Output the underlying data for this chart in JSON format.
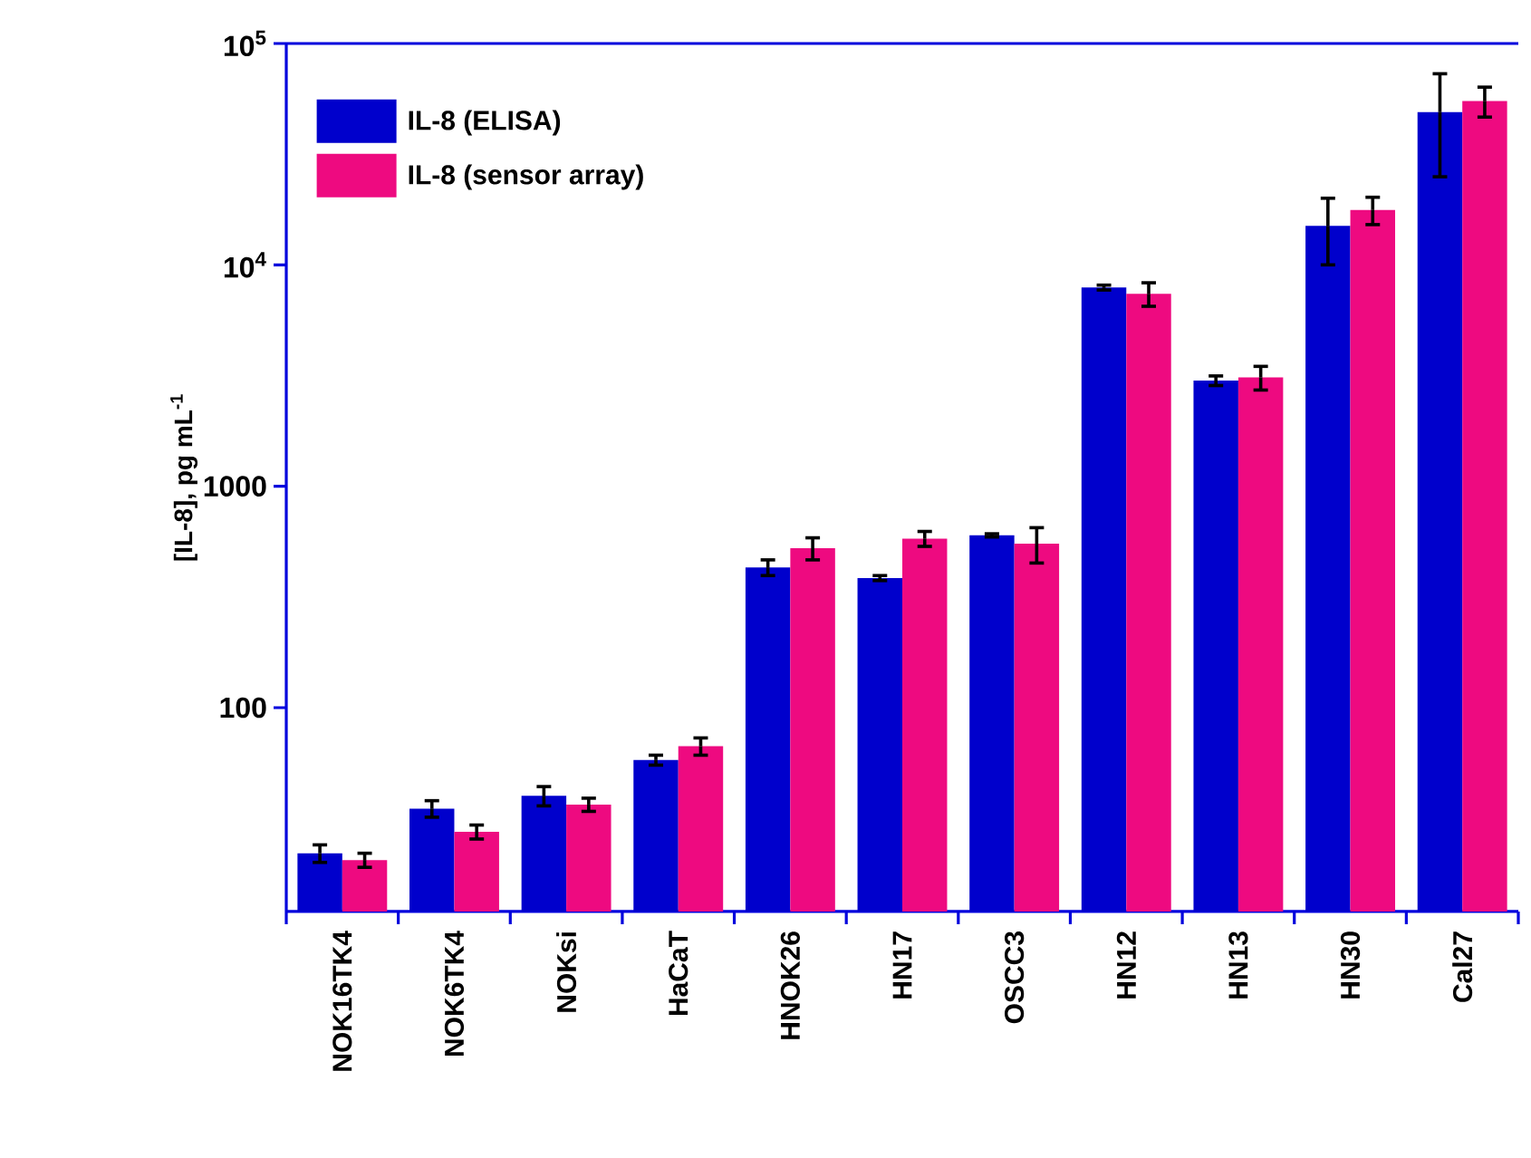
{
  "chart_data": {
    "type": "bar",
    "ylabel": "[IL-8], pg mL$^{-1}$",
    "categories": [
      "NOK16TK4",
      "NOK6TK4",
      "NOKsi",
      "HaCaT",
      "HNOK26",
      "HN17",
      "OSCC3",
      "HN12",
      "HN13",
      "HN30",
      "Cal27"
    ],
    "series": [
      {
        "name": "IL-8 (ELISA)",
        "color": "#0000cc",
        "values": [
          22,
          35,
          40,
          58,
          430,
          385,
          600,
          7900,
          3000,
          15000,
          49000
        ],
        "errors": [
          2,
          3,
          4,
          3,
          35,
          10,
          10,
          200,
          150,
          5000,
          24000
        ]
      },
      {
        "name": "IL-8 (sensor array)",
        "color": "#ee0a80",
        "values": [
          20.5,
          27.5,
          36.5,
          67,
          525,
          580,
          550,
          7400,
          3100,
          17700,
          55000
        ],
        "errors": [
          1.5,
          2,
          2.5,
          6,
          60,
          45,
          100,
          900,
          380,
          2500,
          8500
        ]
      }
    ],
    "log": true,
    "ylim": [
      12,
      100000
    ],
    "yticks": [
      100,
      1000,
      {
        "value": 10000,
        "label": "10$^{4}$"
      },
      {
        "value": 100000,
        "label": "10$^{5}$"
      }
    ],
    "legend": "top left"
  }
}
